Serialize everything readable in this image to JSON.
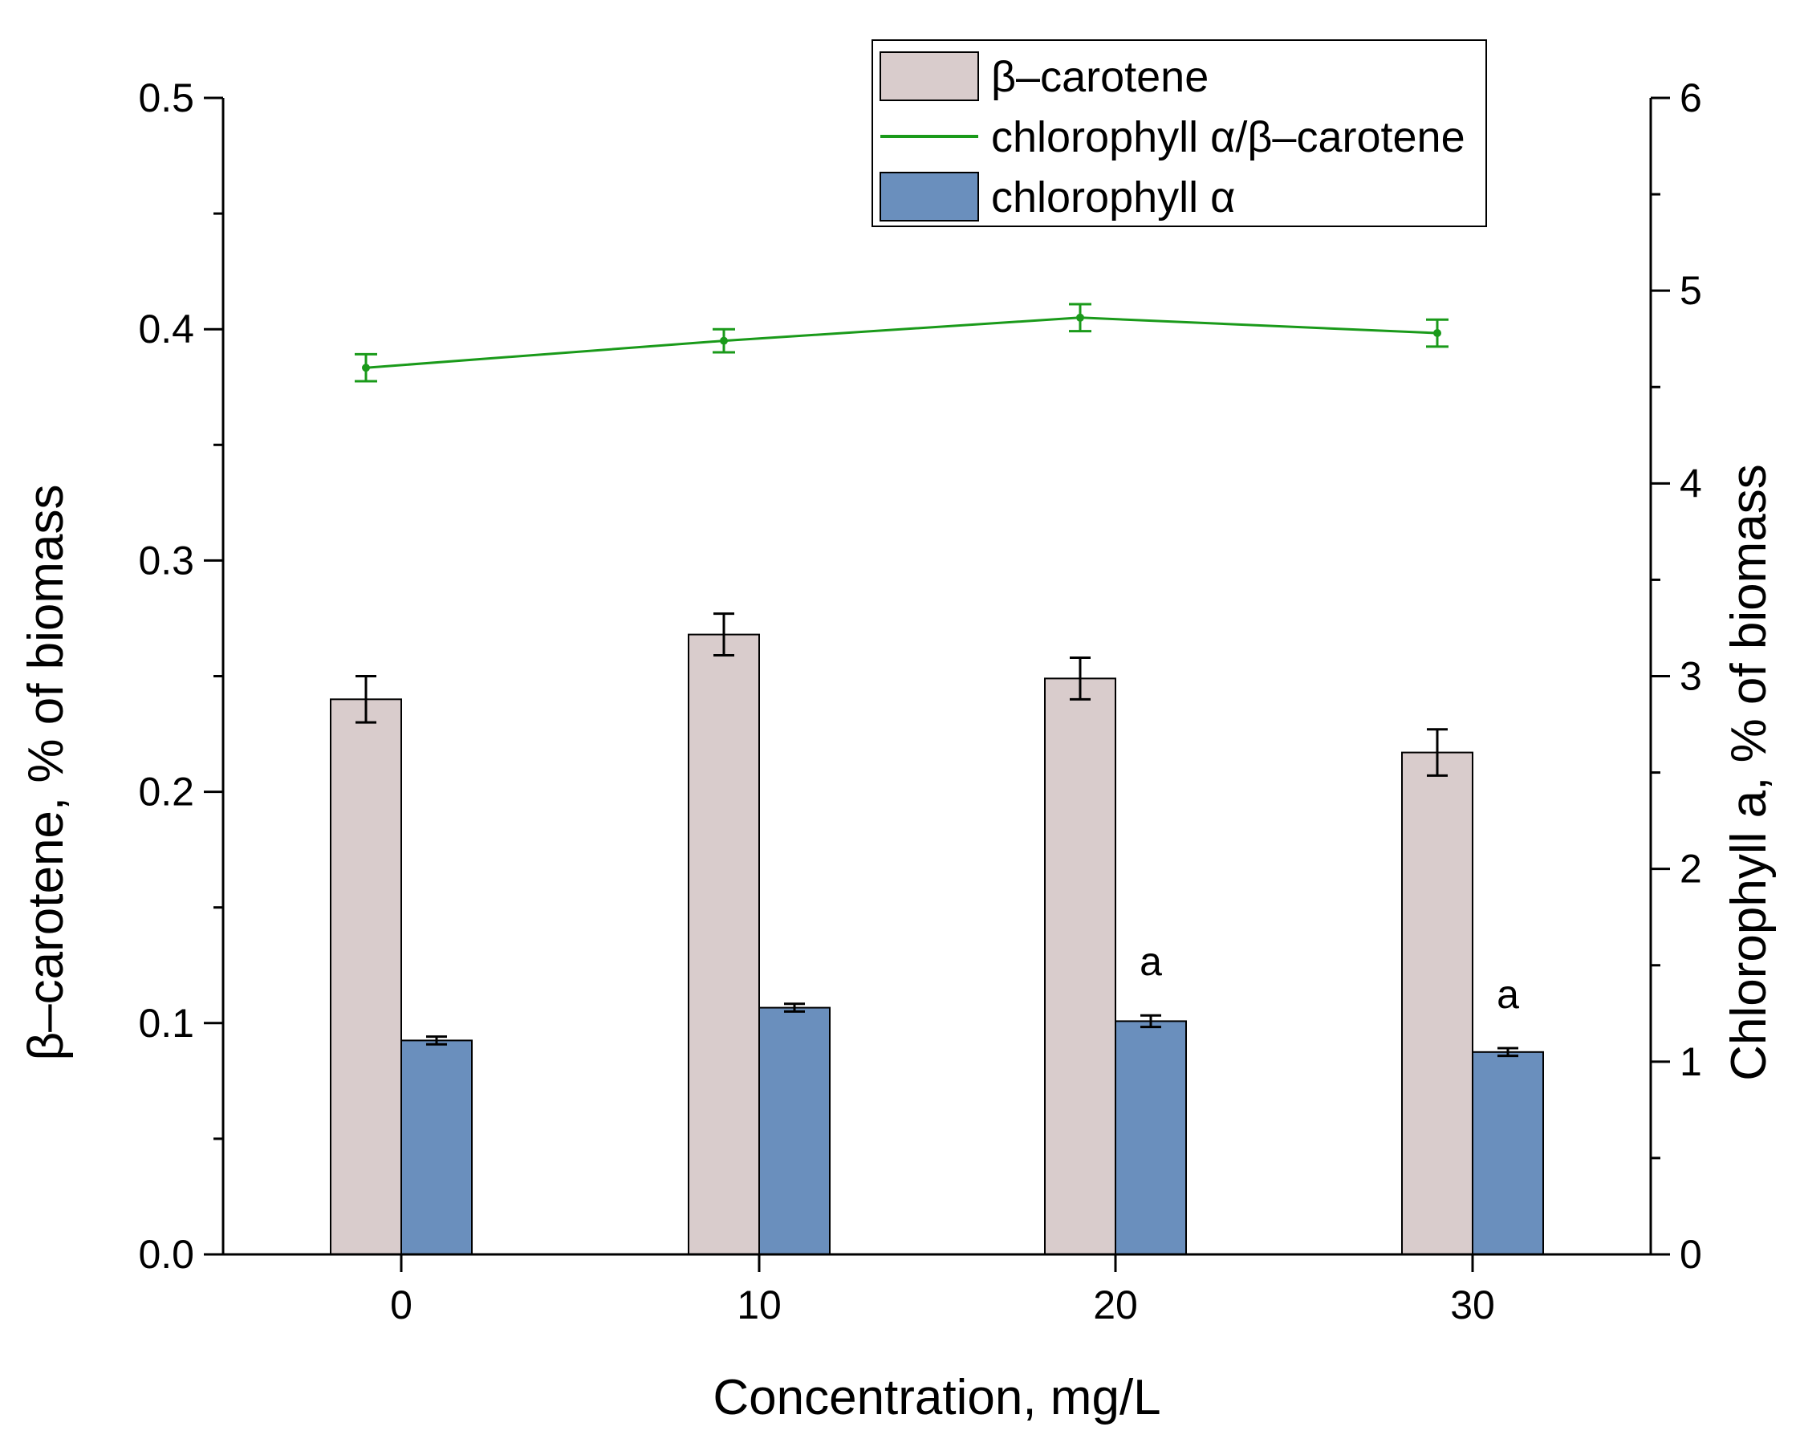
{
  "chart_data": {
    "type": "bar",
    "categories": [
      "0",
      "10",
      "20",
      "30"
    ],
    "xlabel": "Concentration, mg/L",
    "ylabel": "β–carotene, % of biomass",
    "y2label": "Chlorophyll a, % of biomass",
    "ylim": [
      0,
      0.5
    ],
    "y2lim": [
      0,
      6
    ],
    "yticks": [
      "0.0",
      "0.1",
      "0.2",
      "0.3",
      "0.4",
      "0.5"
    ],
    "y2ticks": [
      "0",
      "1",
      "2",
      "3",
      "4",
      "5",
      "6"
    ],
    "legend_position": "top-right",
    "series": [
      {
        "name": "β–carotene",
        "kind": "bar",
        "axis": "left",
        "color": "#d9cccc",
        "values": [
          0.24,
          0.268,
          0.249,
          0.217
        ],
        "errors": [
          0.01,
          0.009,
          0.009,
          0.01
        ]
      },
      {
        "name": "chlorophyll α",
        "kind": "bar",
        "axis": "right",
        "color": "#6a8fbd",
        "values": [
          1.11,
          1.28,
          1.21,
          1.05
        ],
        "errors": [
          0.02,
          0.02,
          0.03,
          0.02
        ],
        "annotations": [
          "",
          "",
          "a",
          "a"
        ]
      },
      {
        "name": "chlorophyll α/β–carotene",
        "kind": "line",
        "axis": "right",
        "color": "#1a9a1a",
        "values": [
          4.6,
          4.74,
          4.86,
          4.78
        ],
        "errors": [
          0.07,
          0.06,
          0.07,
          0.07
        ]
      }
    ],
    "legend_order": [
      "β–carotene",
      "chlorophyll α/β–carotene",
      "chlorophyll α"
    ]
  }
}
